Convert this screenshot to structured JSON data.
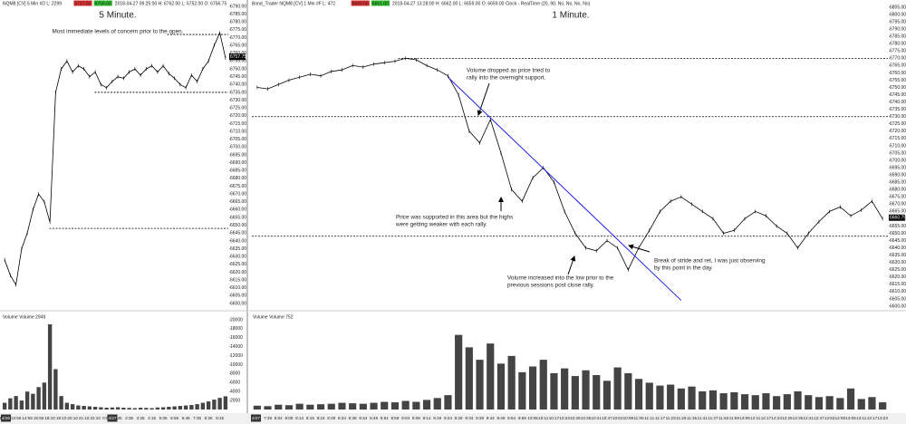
{
  "chart_data": [
    {
      "type": "line",
      "title": "5 Minute.",
      "annotation": "Most immediate levels of concern prior to the open.",
      "header": [
        "NQM8 [CV]  5 Min  #D  L: 2299",
        "6757.50",
        "6758.00",
        "2018-04-27 09:25:00  H: 6762.00  L: 6752.00  O: 6756.75"
      ],
      "date_labels": [
        "4/26",
        "4/27"
      ],
      "categories": [
        "12:55",
        null,
        "13:55",
        null,
        "14:55",
        null,
        "15:55",
        null,
        "18:10",
        null,
        "19:10",
        null,
        "20:10",
        null,
        "21:10",
        null,
        "22:10",
        null,
        "0:55",
        null,
        "1:45",
        null,
        "2:35",
        null,
        "3:25",
        null,
        "4:15",
        null,
        "5:05",
        null,
        "5:55",
        null,
        "6:45",
        null,
        "7:35",
        null,
        "8:25",
        null,
        "9:15",
        null
      ],
      "values": [
        6628,
        6618,
        6612,
        6635,
        6645,
        6660,
        6670,
        6665,
        6652,
        6735,
        6750,
        6755,
        6748,
        6752,
        6750,
        6745,
        6748,
        6740,
        6738,
        6742,
        6745,
        6744,
        6748,
        6750,
        6746,
        6750,
        6752,
        6748,
        6752,
        6747,
        6744,
        6740,
        6738,
        6746,
        6742,
        6750,
        6755,
        6765,
        6773,
        6757
      ],
      "color": "#000000",
      "last_price": 6757.75,
      "levels": [
        6772,
        6735,
        6648
      ],
      "ylim": [
        6600,
        6790
      ],
      "yticks": [
        {
          "value": 6600,
          "label": "6600.00"
        },
        {
          "value": 6605,
          "label": "6605.00"
        },
        {
          "value": 6610,
          "label": "6610.00"
        },
        {
          "value": 6615,
          "label": "6615.00"
        },
        {
          "value": 6620,
          "label": "6620.00"
        },
        {
          "value": 6625,
          "label": "6625.00"
        },
        {
          "value": 6630,
          "label": "6630.00"
        },
        {
          "value": 6635,
          "label": "6635.00"
        },
        {
          "value": 6640,
          "label": "6640.00"
        },
        {
          "value": 6645,
          "label": "6645.00"
        },
        {
          "value": 6650,
          "label": "6650.00"
        },
        {
          "value": 6655,
          "label": "6655.00"
        },
        {
          "value": 6660,
          "label": "6660.00"
        },
        {
          "value": 6665,
          "label": "6665.00"
        },
        {
          "value": 6670,
          "label": "6670.00"
        },
        {
          "value": 6675,
          "label": "6675.00"
        },
        {
          "value": 6680,
          "label": "6680.00"
        },
        {
          "value": 6685,
          "label": "6685.00"
        },
        {
          "value": 6690,
          "label": "6690.00"
        },
        {
          "value": 6695,
          "label": "6695.00"
        },
        {
          "value": 6700,
          "label": "6700.00"
        },
        {
          "value": 6705,
          "label": "6705.00"
        },
        {
          "value": 6710,
          "label": "6710.00"
        },
        {
          "value": 6715,
          "label": "6715.00"
        },
        {
          "value": 6720,
          "label": "6720.00"
        },
        {
          "value": 6725,
          "label": "6725.00"
        },
        {
          "value": 6730,
          "label": "6730.00"
        },
        {
          "value": 6735,
          "label": "6735.00"
        },
        {
          "value": 6740,
          "label": "6740.00"
        },
        {
          "value": 6745,
          "label": "6745.00"
        },
        {
          "value": 6750,
          "label": "6750.00"
        },
        {
          "value": 6755,
          "label": "6755.00"
        },
        {
          "value": 6760,
          "label": "6760.00"
        },
        {
          "value": 6765,
          "label": "6765.00"
        },
        {
          "value": 6770,
          "label": "6770.00"
        },
        {
          "value": 6775,
          "label": "6775.00"
        },
        {
          "value": 6780,
          "label": "6780.00"
        },
        {
          "value": 6785,
          "label": "6785.00"
        },
        {
          "value": 6790,
          "label": "6790.00"
        }
      ],
      "volume_label": "Volume  Volume 2949",
      "volume": [
        1500,
        2500,
        3000,
        2000,
        4000,
        3500,
        5000,
        6000,
        19000,
        9000,
        3000,
        1500,
        1200,
        900,
        800,
        700,
        600,
        500,
        400,
        450,
        500,
        400,
        350,
        300,
        400,
        350,
        300,
        450,
        500,
        600,
        700,
        800,
        900,
        1000,
        1200,
        1500,
        1800,
        2200,
        2600,
        2949
      ],
      "volume_color": "#444444",
      "volume_ylim": [
        0,
        20000
      ],
      "volume_yticks": [
        2000,
        4000,
        6000,
        8000,
        10000,
        12000,
        14000,
        16000,
        18000,
        20000
      ]
    },
    {
      "type": "line",
      "title": "1 Minute.",
      "annotations": [
        [
          "Volume dropped as price tried to",
          "rally into the overnight support."
        ],
        [
          "Price was supported in this area but the highs",
          "were getting weaker with each rally."
        ],
        [
          "Volume increased into the low prior to the",
          "previous sessions post close rally."
        ],
        [
          "Break of stride and ret, I was just observing",
          "by this point in the day."
        ]
      ],
      "header": [
        "Bond_Trader  NQM8 [CV]  1 Min  #F  L: 472",
        "6660.50",
        "6661.00",
        "2018-04-27 13:28:00  H: 6662.00  L: 6659.00  O: 6659.00  Clock - RealTime  (20, 90, No, No, No, No)"
      ],
      "date_labels": [
        "4/27"
      ],
      "categories": [
        "7:34",
        "7:39",
        "8:04",
        "8:09",
        "8:14",
        "8:19",
        "8:24",
        "8:29",
        "8:34",
        "8:39",
        "8:44",
        "8:49",
        "8:54",
        "8:59",
        "9:04",
        "9:09",
        "9:14",
        "9:19",
        "9:24",
        "9:29",
        "9:34",
        "9:39",
        "9:44",
        "9:49",
        "9:54",
        "9:59",
        "10:05",
        "10:11",
        "10:17",
        "10:23",
        "10:29",
        "10:35",
        "10:41",
        "10:47",
        "10:53",
        "10:59",
        "11:05",
        "11:11",
        "11:17",
        "11:23",
        "11:29",
        "11:35",
        "11:41",
        "11:47",
        "11:53",
        "11:59",
        "12:05",
        "12:11",
        "12:17",
        "12:23",
        "12:29",
        "12:35",
        "12:41",
        "12:47",
        "12:53",
        "12:59",
        "13:05",
        "13:11",
        "13:17",
        "13:23"
      ],
      "values": [
        6750,
        6749,
        6752,
        6755,
        6757,
        6759,
        6758,
        6761,
        6762,
        6765,
        6764,
        6766,
        6767,
        6768,
        6770,
        6769,
        6765,
        6762,
        6758,
        6745,
        6720,
        6712,
        6728,
        6705,
        6680,
        6672,
        6688,
        6695,
        6685,
        6665,
        6650,
        6640,
        6638,
        6645,
        6640,
        6625,
        6640,
        6652,
        6665,
        6672,
        6675,
        6670,
        6665,
        6660,
        6650,
        6652,
        6660,
        6665,
        6662,
        6655,
        6650,
        6640,
        6650,
        6658,
        6665,
        6668,
        6662,
        6666,
        6672,
        6660
      ],
      "color": "#000000",
      "last_price": 6660.75,
      "levels": [
        6770,
        6730,
        6648
      ],
      "trendline": {
        "x": [
          "9:24",
          "11:29"
        ],
        "y": [
          6757,
          6604
        ],
        "color": "#1f1fe0"
      },
      "ylim": [
        6600,
        6805
      ],
      "yticks": [
        {
          "value": 6600,
          "label": "6600.00"
        },
        {
          "value": 6605,
          "label": "6605.00"
        },
        {
          "value": 6610,
          "label": "6610.00"
        },
        {
          "value": 6615,
          "label": "6615.00"
        },
        {
          "value": 6620,
          "label": "6620.00"
        },
        {
          "value": 6625,
          "label": "6625.00"
        },
        {
          "value": 6630,
          "label": "6630.00"
        },
        {
          "value": 6635,
          "label": "6635.00"
        },
        {
          "value": 6640,
          "label": "6640.00"
        },
        {
          "value": 6645,
          "label": "6645.00"
        },
        {
          "value": 6650,
          "label": "6650.00"
        },
        {
          "value": 6655,
          "label": "6655.00"
        },
        {
          "value": 6660,
          "label": "6660.00"
        },
        {
          "value": 6665,
          "label": "6665.00"
        },
        {
          "value": 6670,
          "label": "6670.00"
        },
        {
          "value": 6675,
          "label": "6675.00"
        },
        {
          "value": 6680,
          "label": "6680.00"
        },
        {
          "value": 6685,
          "label": "6685.00"
        },
        {
          "value": 6690,
          "label": "6690.00"
        },
        {
          "value": 6695,
          "label": "6695.00"
        },
        {
          "value": 6700,
          "label": "6700.00"
        },
        {
          "value": 6705,
          "label": "6705.00"
        },
        {
          "value": 6710,
          "label": "6710.00"
        },
        {
          "value": 6715,
          "label": "6715.00"
        },
        {
          "value": 6720,
          "label": "6720.00"
        },
        {
          "value": 6725,
          "label": "6725.00"
        },
        {
          "value": 6730,
          "label": "6730.00"
        },
        {
          "value": 6735,
          "label": "6735.00"
        },
        {
          "value": 6740,
          "label": "6740.00"
        },
        {
          "value": 6745,
          "label": "6745.00"
        },
        {
          "value": 6750,
          "label": "6750.00"
        },
        {
          "value": 6755,
          "label": "6755.00"
        },
        {
          "value": 6760,
          "label": "6760.00"
        },
        {
          "value": 6765,
          "label": "6765.00"
        },
        {
          "value": 6770,
          "label": "6770.00"
        },
        {
          "value": 6775,
          "label": "6775.00"
        },
        {
          "value": 6780,
          "label": "6780.00"
        },
        {
          "value": 6785,
          "label": "6785.00"
        },
        {
          "value": 6790,
          "label": "6790.00"
        },
        {
          "value": 6795,
          "label": "6795.00"
        },
        {
          "value": 6800,
          "label": "6800.00"
        },
        {
          "value": 6805,
          "label": "6805.00"
        }
      ],
      "volume_label": "Volume  Volume 752",
      "volume": [
        400,
        350,
        500,
        450,
        600,
        500,
        550,
        600,
        700,
        650,
        600,
        700,
        800,
        750,
        900,
        800,
        1000,
        1200,
        1500,
        7800,
        6500,
        5200,
        6900,
        4800,
        5600,
        3900,
        4500,
        5200,
        3800,
        4300,
        3500,
        4100,
        3600,
        3000,
        4400,
        3800,
        3200,
        2800,
        2500,
        2600,
        2200,
        2400,
        1900,
        2000,
        1700,
        1800,
        1600,
        1500,
        1700,
        1400,
        1600,
        1900,
        1500,
        1300,
        1400,
        1200,
        2200,
        1100,
        1300,
        752
      ],
      "volume_color": "#444444",
      "volume_ylim": [
        0,
        9000
      ]
    }
  ]
}
